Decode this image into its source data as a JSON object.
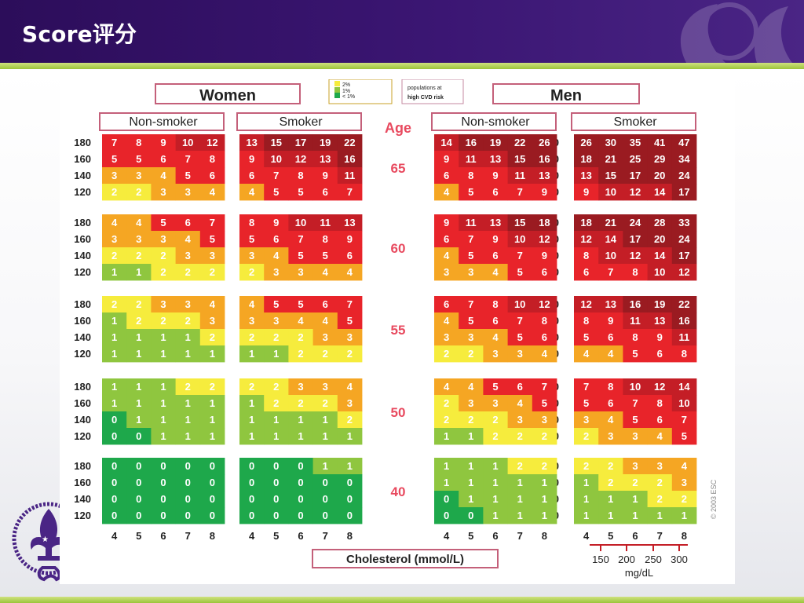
{
  "slide": {
    "title": "Score评分"
  },
  "chart_data": {
    "type": "heatmap",
    "groups": [
      {
        "label": "Women",
        "columns": [
          {
            "label": "Non-smoker",
            "smoker": false
          },
          {
            "label": "Smoker",
            "smoker": true
          }
        ]
      },
      {
        "label": "Men",
        "columns": [
          {
            "label": "Non-smoker",
            "smoker": false
          },
          {
            "label": "Smoker",
            "smoker": true
          }
        ]
      }
    ],
    "age_label": "Age",
    "ages": [
      "65",
      "60",
      "55",
      "50",
      "40"
    ],
    "systolic_bp": [
      "180",
      "160",
      "140",
      "120"
    ],
    "cholesterol_ticks": [
      "4",
      "5",
      "6",
      "7",
      "8"
    ],
    "xlabel": "Cholesterol (mmol/L)",
    "mgdl_ticks": [
      "150",
      "200",
      "250",
      "300"
    ],
    "mgdl_unit": "mg/dL",
    "legend": {
      "items": [
        {
          "label": "2%",
          "color": "#f6ec3d"
        },
        {
          "label": "1%",
          "color": "#8fc63f"
        },
        {
          "label": "< 1%",
          "color": "#1ea84b"
        }
      ],
      "note_line1": "populations at",
      "note_line2": "high CVD risk"
    },
    "copyright": "© 2003 ESC",
    "colors": {
      "lt1": "#1ea84b",
      "p1": "#8fc63f",
      "p2": "#f6ec3d",
      "p3_4": "#f5a623",
      "p5_9": "#e8242a",
      "p10_14": "#c41e26",
      "p15plus": "#9a1b21"
    },
    "values": {
      "women_nonsmoker": [
        [
          [
            7,
            8,
            9,
            10,
            12
          ],
          [
            5,
            5,
            6,
            7,
            8
          ],
          [
            3,
            3,
            4,
            5,
            6
          ],
          [
            2,
            2,
            3,
            3,
            4
          ]
        ],
        [
          [
            4,
            4,
            5,
            6,
            7
          ],
          [
            3,
            3,
            3,
            4,
            5
          ],
          [
            2,
            2,
            2,
            3,
            3
          ],
          [
            1,
            1,
            2,
            2,
            2
          ]
        ],
        [
          [
            2,
            2,
            3,
            3,
            4
          ],
          [
            1,
            2,
            2,
            2,
            3
          ],
          [
            1,
            1,
            1,
            1,
            2
          ],
          [
            1,
            1,
            1,
            1,
            1
          ]
        ],
        [
          [
            1,
            1,
            1,
            2,
            2
          ],
          [
            1,
            1,
            1,
            1,
            1
          ],
          [
            0,
            1,
            1,
            1,
            1
          ],
          [
            0,
            0,
            1,
            1,
            1
          ]
        ],
        [
          [
            0,
            0,
            0,
            0,
            0
          ],
          [
            0,
            0,
            0,
            0,
            0
          ],
          [
            0,
            0,
            0,
            0,
            0
          ],
          [
            0,
            0,
            0,
            0,
            0
          ]
        ]
      ],
      "women_smoker": [
        [
          [
            13,
            15,
            17,
            19,
            22
          ],
          [
            9,
            10,
            12,
            13,
            16
          ],
          [
            6,
            7,
            8,
            9,
            11
          ],
          [
            4,
            5,
            5,
            6,
            7
          ]
        ],
        [
          [
            8,
            9,
            10,
            11,
            13
          ],
          [
            5,
            6,
            7,
            8,
            9
          ],
          [
            3,
            4,
            5,
            5,
            6
          ],
          [
            2,
            3,
            3,
            4,
            4
          ]
        ],
        [
          [
            4,
            5,
            5,
            6,
            7
          ],
          [
            3,
            3,
            4,
            4,
            5
          ],
          [
            2,
            2,
            2,
            3,
            3
          ],
          [
            1,
            1,
            2,
            2,
            2
          ]
        ],
        [
          [
            2,
            2,
            3,
            3,
            4
          ],
          [
            1,
            2,
            2,
            2,
            3
          ],
          [
            1,
            1,
            1,
            1,
            2
          ],
          [
            1,
            1,
            1,
            1,
            1
          ]
        ],
        [
          [
            0,
            0,
            0,
            1,
            1
          ],
          [
            0,
            0,
            0,
            0,
            0
          ],
          [
            0,
            0,
            0,
            0,
            0
          ],
          [
            0,
            0,
            0,
            0,
            0
          ]
        ]
      ],
      "men_nonsmoker": [
        [
          [
            14,
            16,
            19,
            22,
            26
          ],
          [
            9,
            11,
            13,
            15,
            16
          ],
          [
            6,
            8,
            9,
            11,
            13
          ],
          [
            4,
            5,
            6,
            7,
            9
          ]
        ],
        [
          [
            9,
            11,
            13,
            15,
            18
          ],
          [
            6,
            7,
            9,
            10,
            12
          ],
          [
            4,
            5,
            6,
            7,
            9
          ],
          [
            3,
            3,
            4,
            5,
            6
          ]
        ],
        [
          [
            6,
            7,
            8,
            10,
            12
          ],
          [
            4,
            5,
            6,
            7,
            8
          ],
          [
            3,
            3,
            4,
            5,
            6
          ],
          [
            2,
            2,
            3,
            3,
            4
          ]
        ],
        [
          [
            4,
            4,
            5,
            6,
            7
          ],
          [
            2,
            3,
            3,
            4,
            5
          ],
          [
            2,
            2,
            2,
            3,
            3
          ],
          [
            1,
            1,
            2,
            2,
            2
          ]
        ],
        [
          [
            1,
            1,
            1,
            2,
            2
          ],
          [
            1,
            1,
            1,
            1,
            1
          ],
          [
            0,
            1,
            1,
            1,
            1
          ],
          [
            0,
            0,
            1,
            1,
            1
          ]
        ]
      ],
      "men_smoker": [
        [
          [
            26,
            30,
            35,
            41,
            47
          ],
          [
            18,
            21,
            25,
            29,
            34
          ],
          [
            13,
            15,
            17,
            20,
            24
          ],
          [
            9,
            10,
            12,
            14,
            17
          ]
        ],
        [
          [
            18,
            21,
            24,
            28,
            33
          ],
          [
            12,
            14,
            17,
            20,
            24
          ],
          [
            8,
            10,
            12,
            14,
            17
          ],
          [
            6,
            7,
            8,
            10,
            12
          ]
        ],
        [
          [
            12,
            13,
            16,
            19,
            22
          ],
          [
            8,
            9,
            11,
            13,
            16
          ],
          [
            5,
            6,
            8,
            9,
            11
          ],
          [
            4,
            4,
            5,
            6,
            8
          ]
        ],
        [
          [
            7,
            8,
            10,
            12,
            14
          ],
          [
            5,
            6,
            7,
            8,
            10
          ],
          [
            3,
            4,
            5,
            6,
            7
          ],
          [
            2,
            3,
            3,
            4,
            5
          ]
        ],
        [
          [
            2,
            2,
            3,
            3,
            4
          ],
          [
            1,
            2,
            2,
            2,
            3
          ],
          [
            1,
            1,
            1,
            2,
            2
          ],
          [
            1,
            1,
            1,
            1,
            1
          ]
        ]
      ]
    }
  }
}
